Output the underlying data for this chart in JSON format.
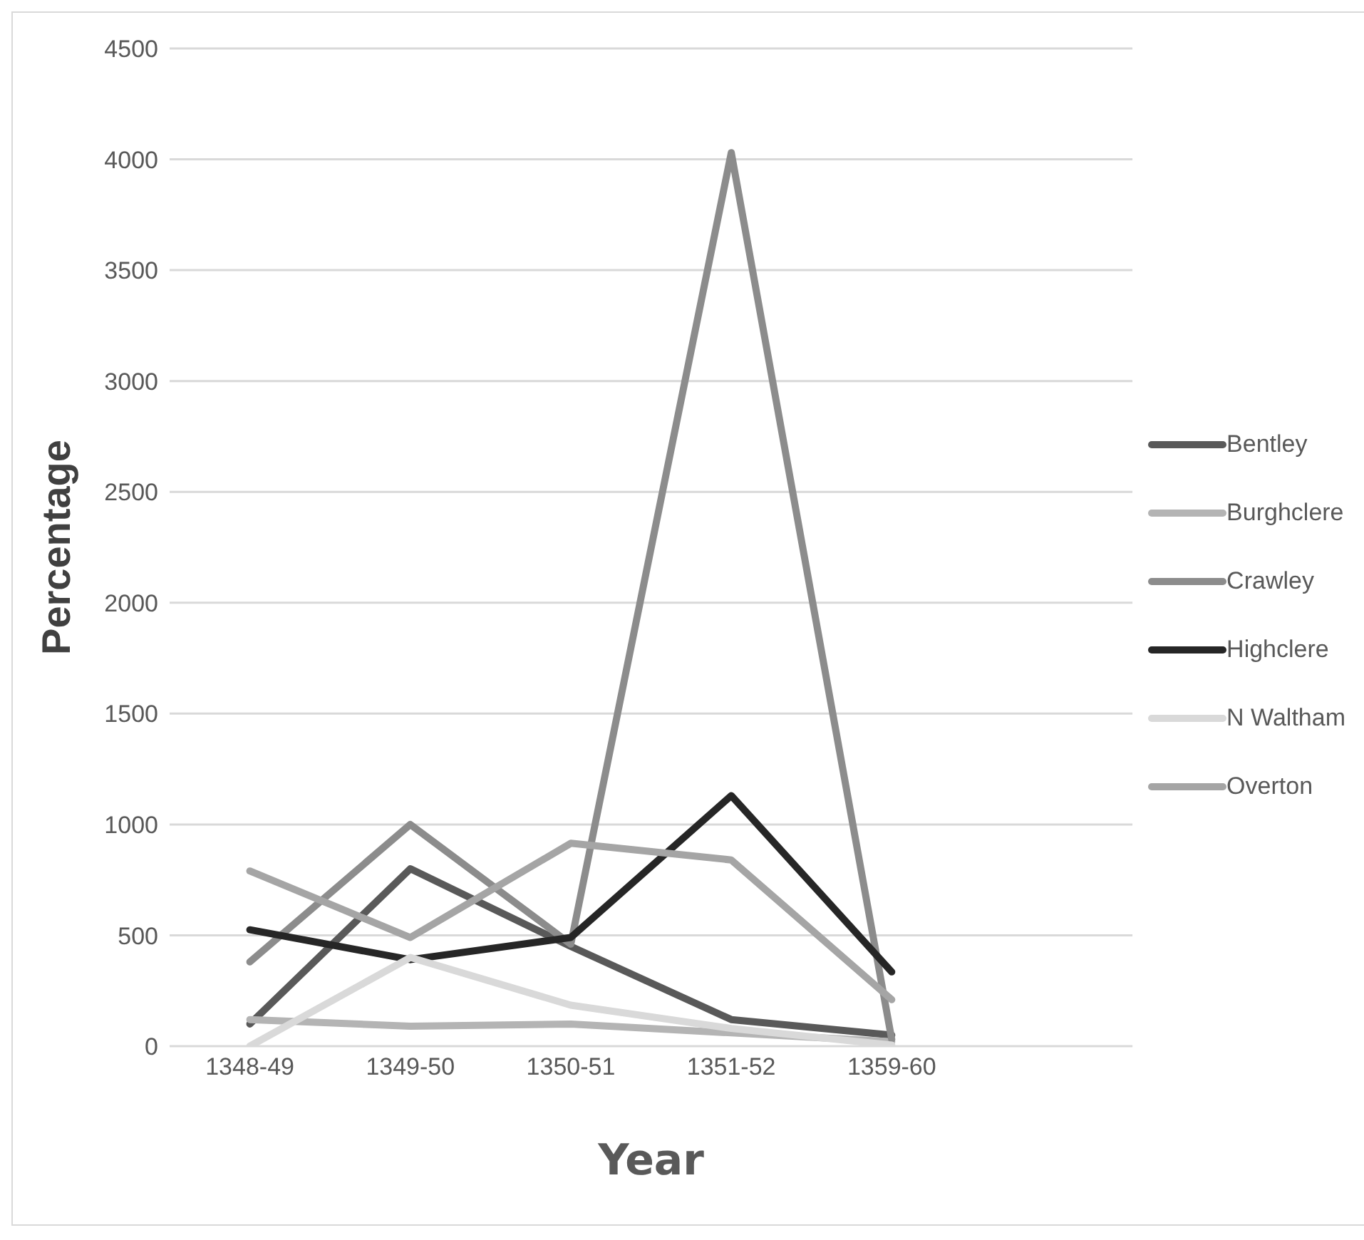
{
  "chart_data": {
    "type": "line",
    "xlabel": "Year",
    "ylabel": "Percentage",
    "categories": [
      "1348-49",
      "1349-50",
      "1350-51",
      "1351-52",
      "1359-60"
    ],
    "series": [
      {
        "name": "Bentley",
        "color": "#595959",
        "values": [
          100,
          800,
          450,
          120,
          50
        ]
      },
      {
        "name": "Burghclere",
        "color": "#b4b4b4",
        "values": [
          120,
          90,
          100,
          60,
          20
        ]
      },
      {
        "name": "Crawley",
        "color": "#8c8c8c",
        "values": [
          380,
          1000,
          460,
          4030,
          30
        ]
      },
      {
        "name": "Highclere",
        "color": "#262626",
        "values": [
          525,
          390,
          490,
          1130,
          335
        ]
      },
      {
        "name": "N Waltham",
        "color": "#d9d9d9",
        "values": [
          0,
          400,
          185,
          80,
          5
        ]
      },
      {
        "name": "Overton",
        "color": "#a5a5a5",
        "values": [
          790,
          490,
          915,
          840,
          210
        ]
      }
    ],
    "ylim": [
      0,
      4500
    ],
    "yticks": [
      0,
      500,
      1000,
      1500,
      2000,
      2500,
      3000,
      3500,
      4000,
      4500
    ],
    "grid": "y",
    "legend": "right",
    "marker": "none",
    "line_style": "solid"
  }
}
